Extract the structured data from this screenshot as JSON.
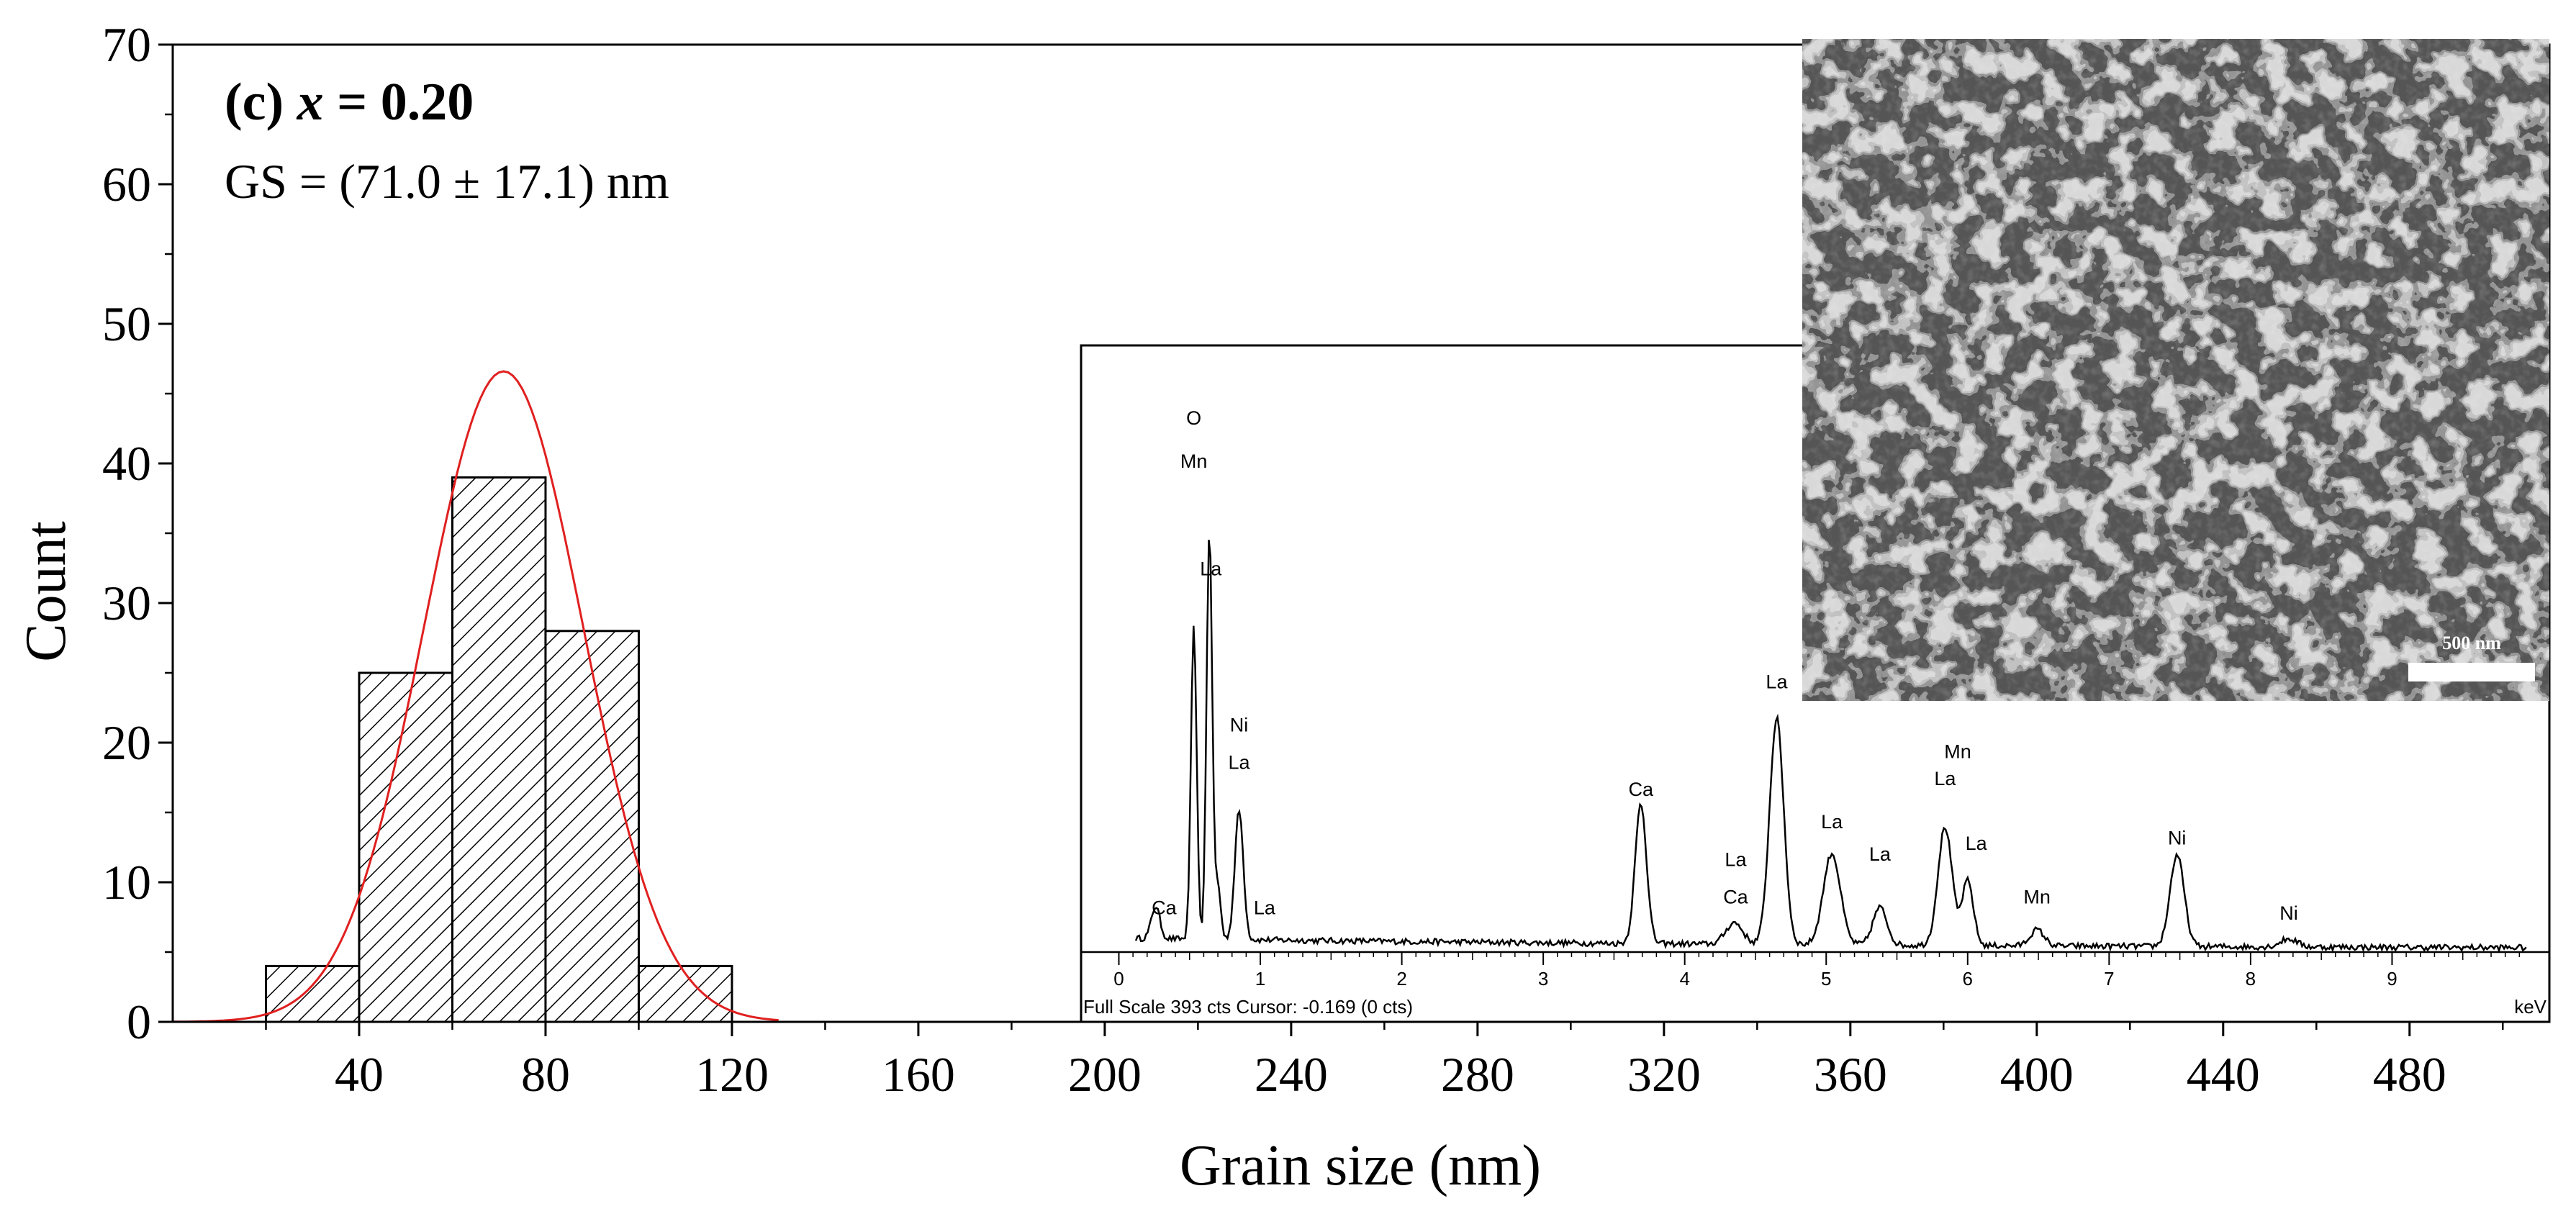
{
  "chart_data": [
    {
      "type": "bar",
      "panel_label": "(c) x = 0.20",
      "panel_label_prefix": "(c) ",
      "panel_label_var": "x",
      "panel_label_rest": " = 0.20",
      "annotation": "GS = (71.0 ± 17.1) nm",
      "xlabel": "Grain size (nm)",
      "ylabel": "Count",
      "xlim": [
        0,
        510
      ],
      "ylim": [
        0,
        70
      ],
      "x_ticks": [
        40,
        80,
        120,
        160,
        200,
        240,
        280,
        320,
        360,
        400,
        440,
        480
      ],
      "y_ticks": [
        0,
        10,
        20,
        30,
        40,
        50,
        60,
        70
      ],
      "bins": [
        {
          "from": 20,
          "to": 40,
          "count": 4
        },
        {
          "from": 40,
          "to": 60,
          "count": 25
        },
        {
          "from": 60,
          "to": 80,
          "count": 39
        },
        {
          "from": 80,
          "to": 100,
          "count": 28
        },
        {
          "from": 100,
          "to": 120,
          "count": 4
        }
      ],
      "fit": {
        "type": "gaussian",
        "mean": 71.0,
        "sigma": 17.1,
        "peak": 46.6,
        "color": "#e02020"
      },
      "hatch": "diagonal"
    },
    {
      "type": "line",
      "inset": "EDS spectrum",
      "status_text": "Full Scale 393 cts Cursor: -0.169  (0 cts)",
      "x_unit": "keV",
      "xlim": [
        -0.15,
        10.0
      ],
      "full_scale_cts": 393,
      "x_ticks": [
        0,
        1,
        2,
        3,
        4,
        5,
        6,
        7,
        8,
        9
      ],
      "peaks": [
        {
          "x": 0.26,
          "h": 0.06,
          "w": 0.03
        },
        {
          "x": 0.53,
          "h": 0.58,
          "w": 0.02
        },
        {
          "x": 0.64,
          "h": 0.76,
          "w": 0.02
        },
        {
          "x": 0.7,
          "h": 0.1,
          "w": 0.02
        },
        {
          "x": 0.85,
          "h": 0.24,
          "w": 0.03
        },
        {
          "x": 3.69,
          "h": 0.26,
          "w": 0.04
        },
        {
          "x": 4.35,
          "h": 0.04,
          "w": 0.06
        },
        {
          "x": 4.65,
          "h": 0.42,
          "w": 0.05
        },
        {
          "x": 5.04,
          "h": 0.17,
          "w": 0.06
        },
        {
          "x": 5.38,
          "h": 0.07,
          "w": 0.05
        },
        {
          "x": 5.84,
          "h": 0.22,
          "w": 0.05
        },
        {
          "x": 6.0,
          "h": 0.12,
          "w": 0.04
        },
        {
          "x": 6.49,
          "h": 0.03,
          "w": 0.05
        },
        {
          "x": 7.48,
          "h": 0.17,
          "w": 0.05
        },
        {
          "x": 8.27,
          "h": 0.015,
          "w": 0.06
        }
      ],
      "peak_labels": [
        {
          "x": 0.32,
          "h": 0.07,
          "text": "Ca"
        },
        {
          "x": 0.53,
          "h": 0.98,
          "text": "O"
        },
        {
          "x": 0.53,
          "h": 0.9,
          "text": "Mn"
        },
        {
          "x": 0.65,
          "h": 0.7,
          "text": "La"
        },
        {
          "x": 0.85,
          "h": 0.41,
          "text": "Ni"
        },
        {
          "x": 0.85,
          "h": 0.34,
          "text": "La"
        },
        {
          "x": 1.03,
          "h": 0.07,
          "text": "La"
        },
        {
          "x": 3.69,
          "h": 0.29,
          "text": "Ca"
        },
        {
          "x": 4.36,
          "h": 0.16,
          "text": "La"
        },
        {
          "x": 4.36,
          "h": 0.09,
          "text": "Ca"
        },
        {
          "x": 4.65,
          "h": 0.49,
          "text": "La"
        },
        {
          "x": 5.04,
          "h": 0.23,
          "text": "La"
        },
        {
          "x": 5.38,
          "h": 0.17,
          "text": "La"
        },
        {
          "x": 5.84,
          "h": 0.31,
          "text": "La"
        },
        {
          "x": 5.93,
          "h": 0.36,
          "text": "Mn"
        },
        {
          "x": 6.06,
          "h": 0.19,
          "text": "La"
        },
        {
          "x": 6.49,
          "h": 0.09,
          "text": "Mn"
        },
        {
          "x": 7.48,
          "h": 0.2,
          "text": "Ni"
        },
        {
          "x": 8.27,
          "h": 0.06,
          "text": "Ni"
        }
      ]
    }
  ],
  "sem_inset": {
    "scale_bar_label": "500 nm",
    "background": "#7e7e7e"
  }
}
